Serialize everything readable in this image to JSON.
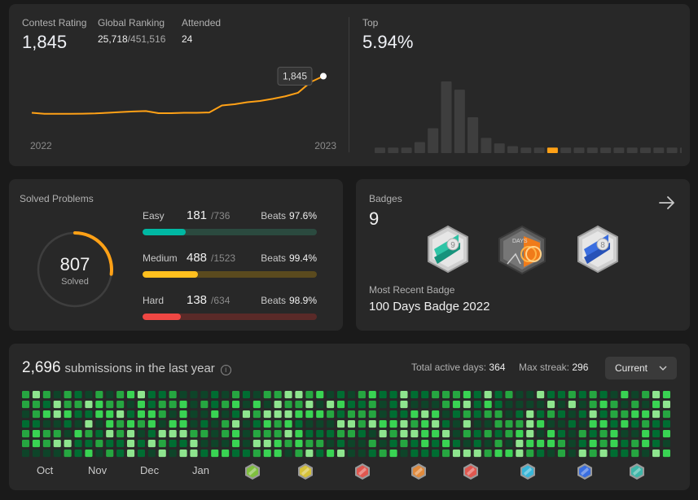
{
  "contest": {
    "rating_label": "Contest Rating",
    "rating": "1,845",
    "ranking_label": "Global Ranking",
    "ranking": "25,718",
    "ranking_total": "/451,516",
    "attended_label": "Attended",
    "attended": "24",
    "top_label": "Top",
    "top_value": "5.94%",
    "tooltip": "1,845",
    "x_start": "2022",
    "x_end": "2023"
  },
  "chart_data": [
    {
      "type": "line",
      "title": "",
      "x": [
        1,
        2,
        3,
        4,
        5,
        6,
        7,
        8,
        9,
        10,
        11,
        12,
        13,
        14,
        15,
        16,
        17,
        18,
        19,
        20,
        21,
        22,
        23,
        24
      ],
      "values": [
        1596,
        1589,
        1589,
        1589,
        1590,
        1592,
        1596,
        1601,
        1605,
        1608,
        1593,
        1593,
        1596,
        1596,
        1598,
        1646,
        1654,
        1668,
        1676,
        1691,
        1708,
        1732,
        1805,
        1845
      ],
      "xlabels": [
        "2022",
        "2023"
      ],
      "ylim": [
        1560,
        1870
      ],
      "grid": false
    },
    {
      "type": "bar",
      "title": "",
      "values": [
        4,
        4,
        4,
        8,
        18,
        52,
        46,
        26,
        11,
        7,
        5,
        4,
        4,
        4,
        4,
        4,
        4,
        4,
        4,
        4,
        4,
        4,
        4,
        4
      ],
      "highlight_index": 13,
      "highlight_color": "#ffa116",
      "bar_color": "#3e3e3e",
      "grid": false
    }
  ],
  "solved": {
    "label": "Solved Problems",
    "total": "807",
    "sub": "Solved",
    "progress": 0.27,
    "ring_color": "#ffa116",
    "items": [
      {
        "name": "Easy",
        "count": "181",
        "total": "/736",
        "beats_label": "Beats",
        "beats": "97.6%",
        "progress": 0.246,
        "color": "#00b8a3",
        "track": "#2b4a3f"
      },
      {
        "name": "Medium",
        "count": "488",
        "total": "/1523",
        "beats_label": "Beats",
        "beats": "99.4%",
        "progress": 0.32,
        "color": "#ffc01e",
        "track": "#5a4a1e"
      },
      {
        "name": "Hard",
        "count": "138",
        "total": "/634",
        "beats_label": "Beats",
        "beats": "98.9%",
        "progress": 0.218,
        "color": "#ef4743",
        "track": "#5a2a28"
      }
    ]
  },
  "badges": {
    "label": "Badges",
    "count": "9",
    "recent_label": "Most Recent Badge",
    "recent_name": "100 Days Badge 2022",
    "icons": [
      "teal-badge-icon",
      "100-days-badge-icon",
      "blue-badge-icon"
    ],
    "arrow_icon": "arrow-right-icon"
  },
  "submissions": {
    "count": "2,696",
    "text": "submissions in the last year",
    "active_label": "Total active days:",
    "active": "364",
    "streak_label": "Max streak:",
    "streak": "296",
    "range": "Current",
    "months": [
      "Oct",
      "Nov",
      "Dec",
      "Jan"
    ],
    "mini_badges": [
      "#7fbf3f",
      "#d6c23a",
      "#e0574f",
      "#e08a3c",
      "#e0574f",
      "#39b6d8",
      "#3a6ee0",
      "#3fb6a8"
    ]
  }
}
